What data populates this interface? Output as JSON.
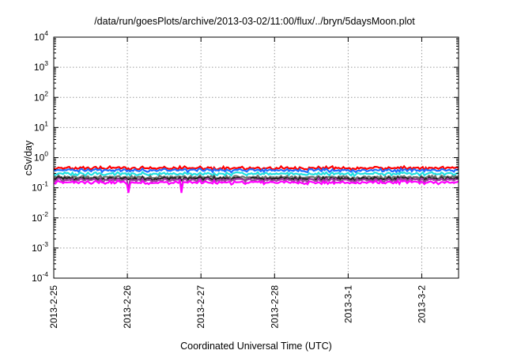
{
  "chart_data": {
    "type": "area",
    "title": "/data/run/goesPlots/archive/2013-03-02/11:00/flux/../bryn/5daysMoon.plot",
    "xlabel": "Coordinated Universal Time (UTC)",
    "ylabel": "cSv/day",
    "yscale": "log",
    "ylim": [
      0.0001,
      10000
    ],
    "y_ticks": [
      {
        "base": "10",
        "exp": "-4"
      },
      {
        "base": "10",
        "exp": "-3"
      },
      {
        "base": "10",
        "exp": "-2"
      },
      {
        "base": "10",
        "exp": "-1"
      },
      {
        "base": "10",
        "exp": "0"
      },
      {
        "base": "10",
        "exp": "1"
      },
      {
        "base": "10",
        "exp": "2"
      },
      {
        "base": "10",
        "exp": "3"
      },
      {
        "base": "10",
        "exp": "4"
      }
    ],
    "xlim": [
      "2013-02-25",
      "2013-03-02 12:00"
    ],
    "x_ticks": [
      "2013-2-25",
      "2013-2-26",
      "2013-2-27",
      "2013-2-28",
      "2013-3-1",
      "2013-3-2"
    ],
    "grid": true,
    "series_colors": [
      "#ff0000",
      "#1f6fff",
      "#20e0e0",
      "#707070",
      "#202020",
      "#a040a0",
      "#ff00ff"
    ],
    "series_levels": [
      0.45,
      0.38,
      0.29,
      0.225,
      0.2,
      0.18,
      0.15
    ]
  }
}
